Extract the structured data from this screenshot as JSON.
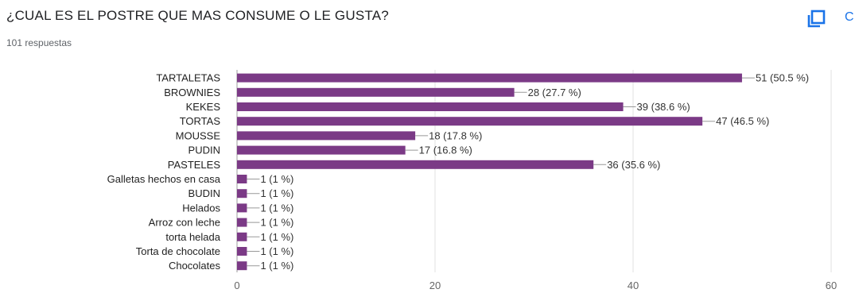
{
  "header": {
    "title": "¿CUAL ES EL POSTRE QUE MAS CONSUME O LE GUSTA?",
    "responses": "101 respuestas",
    "copy_icon": "copy-icon",
    "copy_extra": "C"
  },
  "colors": {
    "bar": "#7b3a86",
    "accent": "#1a73e8",
    "grid": "#e0e0e0",
    "leader": "#999999"
  },
  "chart_data": {
    "type": "bar",
    "orientation": "horizontal",
    "title": "¿CUAL ES EL POSTRE QUE MAS CONSUME O LE GUSTA?",
    "subtitle": "101 respuestas",
    "xlabel": "",
    "ylabel": "",
    "xlim": [
      0,
      60
    ],
    "xticks": [
      0,
      20,
      40,
      60
    ],
    "grid": true,
    "categories": [
      "TARTALETAS",
      "BROWNIES",
      "KEKES",
      "TORTAS",
      "MOUSSE",
      "PUDIN",
      "PASTELES",
      "Galletas hechos en casa",
      "BUDIN",
      "Helados",
      "Arroz con leche",
      "torta helada",
      "Torta de chocolate",
      "Chocolates"
    ],
    "values": [
      51,
      28,
      39,
      47,
      18,
      17,
      36,
      1,
      1,
      1,
      1,
      1,
      1,
      1
    ],
    "data_labels": [
      "51 (50.5 %)",
      "28 (27.7 %)",
      "39 (38.6 %)",
      "47 (46.5 %)",
      "18 (17.8 %)",
      "17 (16.8 %)",
      "36 (35.6 %)",
      "1 (1 %)",
      "1 (1 %)",
      "1 (1 %)",
      "1 (1 %)",
      "1 (1 %)",
      "1 (1 %)",
      "1 (1 %)"
    ]
  }
}
